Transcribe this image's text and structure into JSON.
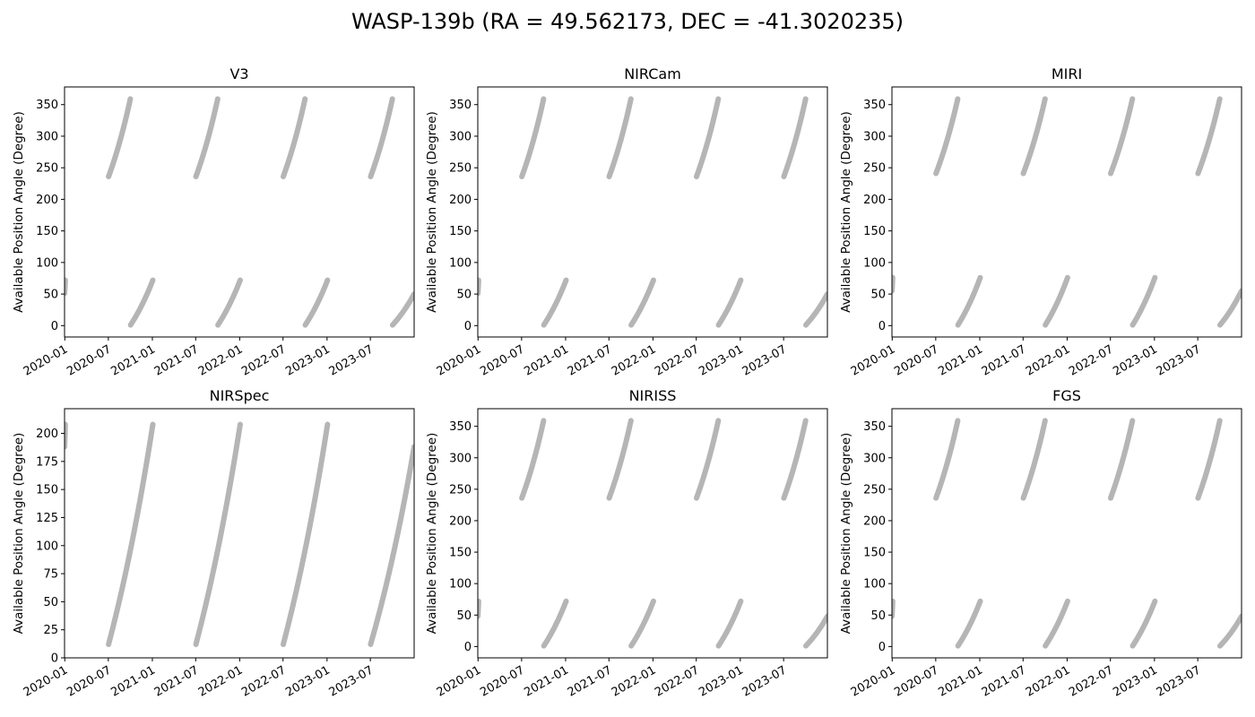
{
  "figure": {
    "title": "WASP-139b (RA = 49.562173, DEC = -41.3020235)"
  },
  "style": {
    "band_color": "#b5b5b5",
    "axis_color": "#000000"
  },
  "chart_data": [
    {
      "type": "area",
      "title": "V3",
      "xlabel": "",
      "ylabel": "Available Position Angle (Degree)",
      "x_range": [
        "2019-12-31",
        "2023-12-31"
      ],
      "ylim": [
        -18,
        378
      ],
      "yticks": [
        0,
        50,
        100,
        150,
        200,
        250,
        300,
        350
      ],
      "xticks": [
        "2020-01",
        "2020-07",
        "2021-01",
        "2021-07",
        "2022-01",
        "2022-07",
        "2023-01",
        "2023-07"
      ],
      "grid": false,
      "bands": [
        {
          "segments": [
            {
              "x0": "2019-12-31",
              "x1": "2020-01-03",
              "v0": 51,
              "v1": 72
            },
            {
              "x0": "2020-07-02",
              "x1": "2020-10-01",
              "v0": 236,
              "v1": 359
            },
            {
              "x0": "2020-10-02",
              "x1": "2021-01-03",
              "v0": 1,
              "v1": 72
            },
            {
              "x0": "2021-07-02",
              "x1": "2021-10-01",
              "v0": 236,
              "v1": 359
            },
            {
              "x0": "2021-10-02",
              "x1": "2022-01-03",
              "v0": 1,
              "v1": 72
            },
            {
              "x0": "2022-07-02",
              "x1": "2022-10-01",
              "v0": 236,
              "v1": 359
            },
            {
              "x0": "2022-10-02",
              "x1": "2023-01-03",
              "v0": 1,
              "v1": 72
            },
            {
              "x0": "2023-07-02",
              "x1": "2023-10-01",
              "v0": 236,
              "v1": 359
            },
            {
              "x0": "2023-10-02",
              "x1": "2023-12-31",
              "v0": 1,
              "v1": 50
            }
          ]
        }
      ]
    },
    {
      "type": "area",
      "title": "NIRCam",
      "xlabel": "",
      "ylabel": "Available Position Angle (Degree)",
      "x_range": [
        "2019-12-31",
        "2023-12-31"
      ],
      "ylim": [
        -18,
        378
      ],
      "yticks": [
        0,
        50,
        100,
        150,
        200,
        250,
        300,
        350
      ],
      "xticks": [
        "2020-01",
        "2020-07",
        "2021-01",
        "2021-07",
        "2022-01",
        "2022-07",
        "2023-01",
        "2023-07"
      ],
      "grid": false,
      "bands": [
        {
          "segments": [
            {
              "x0": "2019-12-31",
              "x1": "2020-01-03",
              "v0": 51,
              "v1": 72
            },
            {
              "x0": "2020-07-02",
              "x1": "2020-10-01",
              "v0": 236,
              "v1": 359
            },
            {
              "x0": "2020-10-02",
              "x1": "2021-01-03",
              "v0": 1,
              "v1": 72
            },
            {
              "x0": "2021-07-02",
              "x1": "2021-10-01",
              "v0": 236,
              "v1": 359
            },
            {
              "x0": "2021-10-02",
              "x1": "2022-01-03",
              "v0": 1,
              "v1": 72
            },
            {
              "x0": "2022-07-02",
              "x1": "2022-10-01",
              "v0": 236,
              "v1": 359
            },
            {
              "x0": "2022-10-02",
              "x1": "2023-01-03",
              "v0": 1,
              "v1": 72
            },
            {
              "x0": "2023-07-02",
              "x1": "2023-10-01",
              "v0": 236,
              "v1": 359
            },
            {
              "x0": "2023-10-02",
              "x1": "2023-12-31",
              "v0": 1,
              "v1": 50
            }
          ]
        }
      ]
    },
    {
      "type": "area",
      "title": "MIRI",
      "xlabel": "",
      "ylabel": "Available Position Angle (Degree)",
      "x_range": [
        "2019-12-31",
        "2023-12-31"
      ],
      "ylim": [
        -18,
        378
      ],
      "yticks": [
        0,
        50,
        100,
        150,
        200,
        250,
        300,
        350
      ],
      "xticks": [
        "2020-01",
        "2020-07",
        "2021-01",
        "2021-07",
        "2022-01",
        "2022-07",
        "2023-01",
        "2023-07"
      ],
      "grid": false,
      "bands": [
        {
          "segments": [
            {
              "x0": "2019-12-31",
              "x1": "2020-01-03",
              "v0": 55,
              "v1": 76
            },
            {
              "x0": "2020-07-02",
              "x1": "2020-10-01",
              "v0": 241,
              "v1": 359
            },
            {
              "x0": "2020-10-02",
              "x1": "2021-01-03",
              "v0": 1,
              "v1": 76
            },
            {
              "x0": "2021-07-02",
              "x1": "2021-10-01",
              "v0": 241,
              "v1": 359
            },
            {
              "x0": "2021-10-02",
              "x1": "2022-01-03",
              "v0": 1,
              "v1": 76
            },
            {
              "x0": "2022-07-02",
              "x1": "2022-10-01",
              "v0": 241,
              "v1": 359
            },
            {
              "x0": "2022-10-02",
              "x1": "2023-01-03",
              "v0": 1,
              "v1": 76
            },
            {
              "x0": "2023-07-02",
              "x1": "2023-10-01",
              "v0": 241,
              "v1": 359
            },
            {
              "x0": "2023-10-02",
              "x1": "2023-12-31",
              "v0": 1,
              "v1": 55
            }
          ]
        }
      ]
    },
    {
      "type": "area",
      "title": "NIRSpec",
      "xlabel": "",
      "ylabel": "Available Position Angle (Degree)",
      "x_range": [
        "2019-12-31",
        "2023-12-31"
      ],
      "ylim": [
        0,
        222
      ],
      "yticks": [
        0,
        25,
        50,
        75,
        100,
        125,
        150,
        175,
        200
      ],
      "xticks": [
        "2020-01",
        "2020-07",
        "2021-01",
        "2021-07",
        "2022-01",
        "2022-07",
        "2023-01",
        "2023-07"
      ],
      "grid": false,
      "bands": [
        {
          "segments": [
            {
              "x0": "2019-12-31",
              "x1": "2020-01-03",
              "v0": 188,
              "v1": 208
            },
            {
              "x0": "2020-07-02",
              "x1": "2021-01-03",
              "v0": 12,
              "v1": 208
            },
            {
              "x0": "2021-07-02",
              "x1": "2022-01-03",
              "v0": 12,
              "v1": 208
            },
            {
              "x0": "2022-07-02",
              "x1": "2023-01-03",
              "v0": 12,
              "v1": 208
            },
            {
              "x0": "2023-07-02",
              "x1": "2023-12-31",
              "v0": 12,
              "v1": 188
            }
          ]
        }
      ]
    },
    {
      "type": "area",
      "title": "NIRISS",
      "xlabel": "",
      "ylabel": "Available Position Angle (Degree)",
      "x_range": [
        "2019-12-31",
        "2023-12-31"
      ],
      "ylim": [
        -18,
        378
      ],
      "yticks": [
        0,
        50,
        100,
        150,
        200,
        250,
        300,
        350
      ],
      "xticks": [
        "2020-01",
        "2020-07",
        "2021-01",
        "2021-07",
        "2022-01",
        "2022-07",
        "2023-01",
        "2023-07"
      ],
      "grid": false,
      "bands": [
        {
          "segments": [
            {
              "x0": "2019-12-31",
              "x1": "2020-01-03",
              "v0": 48,
              "v1": 72
            },
            {
              "x0": "2020-07-02",
              "x1": "2020-10-01",
              "v0": 236,
              "v1": 359
            },
            {
              "x0": "2020-10-02",
              "x1": "2021-01-03",
              "v0": 1,
              "v1": 72
            },
            {
              "x0": "2021-07-02",
              "x1": "2021-10-01",
              "v0": 236,
              "v1": 359
            },
            {
              "x0": "2021-10-02",
              "x1": "2022-01-03",
              "v0": 1,
              "v1": 72
            },
            {
              "x0": "2022-07-02",
              "x1": "2022-10-01",
              "v0": 236,
              "v1": 359
            },
            {
              "x0": "2022-10-02",
              "x1": "2023-01-03",
              "v0": 1,
              "v1": 72
            },
            {
              "x0": "2023-07-02",
              "x1": "2023-10-01",
              "v0": 236,
              "v1": 359
            },
            {
              "x0": "2023-10-02",
              "x1": "2023-12-31",
              "v0": 1,
              "v1": 48
            }
          ]
        }
      ]
    },
    {
      "type": "area",
      "title": "FGS",
      "xlabel": "",
      "ylabel": "Available Position Angle (Degree)",
      "x_range": [
        "2019-12-31",
        "2023-12-31"
      ],
      "ylim": [
        -18,
        378
      ],
      "yticks": [
        0,
        50,
        100,
        150,
        200,
        250,
        300,
        350
      ],
      "xticks": [
        "2020-01",
        "2020-07",
        "2021-01",
        "2021-07",
        "2022-01",
        "2022-07",
        "2023-01",
        "2023-07"
      ],
      "grid": false,
      "bands": [
        {
          "segments": [
            {
              "x0": "2019-12-31",
              "x1": "2020-01-03",
              "v0": 48,
              "v1": 72
            },
            {
              "x0": "2020-07-02",
              "x1": "2020-10-01",
              "v0": 236,
              "v1": 359
            },
            {
              "x0": "2020-10-02",
              "x1": "2021-01-03",
              "v0": 1,
              "v1": 72
            },
            {
              "x0": "2021-07-02",
              "x1": "2021-10-01",
              "v0": 236,
              "v1": 359
            },
            {
              "x0": "2021-10-02",
              "x1": "2022-01-03",
              "v0": 1,
              "v1": 72
            },
            {
              "x0": "2022-07-02",
              "x1": "2022-10-01",
              "v0": 236,
              "v1": 359
            },
            {
              "x0": "2022-10-02",
              "x1": "2023-01-03",
              "v0": 1,
              "v1": 72
            },
            {
              "x0": "2023-07-02",
              "x1": "2023-10-01",
              "v0": 236,
              "v1": 359
            },
            {
              "x0": "2023-10-02",
              "x1": "2023-12-31",
              "v0": 1,
              "v1": 48
            }
          ]
        }
      ]
    }
  ]
}
